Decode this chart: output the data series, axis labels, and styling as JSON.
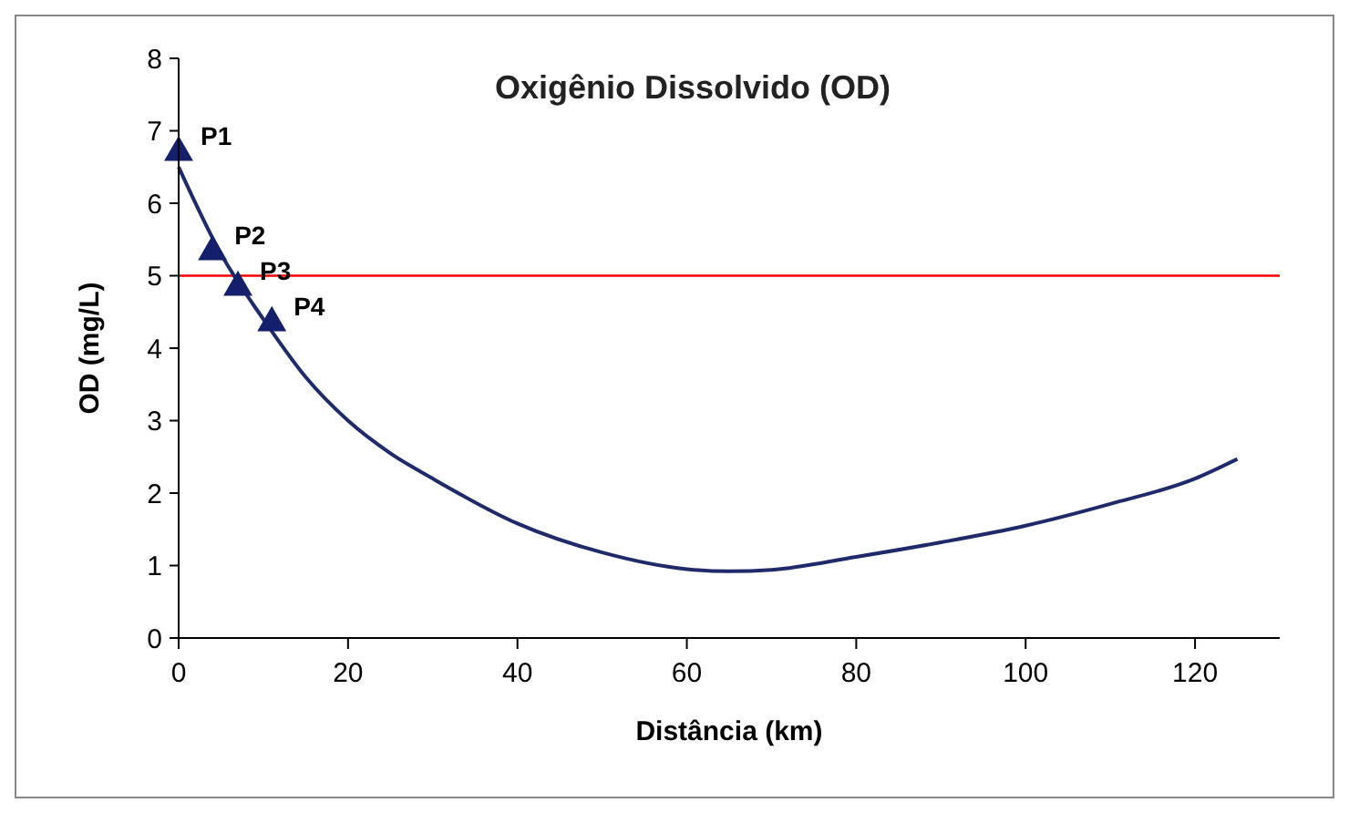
{
  "chart_data": {
    "type": "line",
    "title": "Oxigênio Dissolvido (OD)",
    "xlabel": "Distância (km)",
    "ylabel": "OD (mg/L)",
    "xlim": [
      0,
      130
    ],
    "xticks": [
      0,
      20,
      40,
      60,
      80,
      100,
      120
    ],
    "ylim": [
      0,
      8
    ],
    "yticks": [
      0,
      1,
      2,
      3,
      4,
      5,
      6,
      7,
      8
    ],
    "grid": false,
    "series": [
      {
        "color": "#1f2a6b",
        "marker": "none",
        "x": [
          0,
          5,
          10,
          15,
          20,
          25,
          30,
          40,
          50,
          60,
          65,
          70,
          80,
          90,
          100,
          110,
          120,
          125
        ],
        "values": [
          6.5,
          5.3,
          4.4,
          3.6,
          3.0,
          2.55,
          2.2,
          1.58,
          1.18,
          0.95,
          0.92,
          0.94,
          1.12,
          1.32,
          1.55,
          1.85,
          2.2,
          2.47
        ]
      },
      {
        "type": "scatter",
        "color": "#14206b",
        "marker": "triangle",
        "x": [
          0,
          4,
          7,
          11
        ],
        "values": [
          6.7,
          5.33,
          4.84,
          4.35
        ]
      }
    ],
    "ref_lines": [
      {
        "axis": "y",
        "value": 5,
        "color": "#ff0000"
      }
    ],
    "annotations": [
      {
        "text": "P1",
        "x": 0,
        "y": 6.7
      },
      {
        "text": "P2",
        "x": 4,
        "y": 5.33
      },
      {
        "text": "P3",
        "x": 7,
        "y": 4.84
      },
      {
        "text": "P4",
        "x": 11,
        "y": 4.35
      }
    ]
  }
}
